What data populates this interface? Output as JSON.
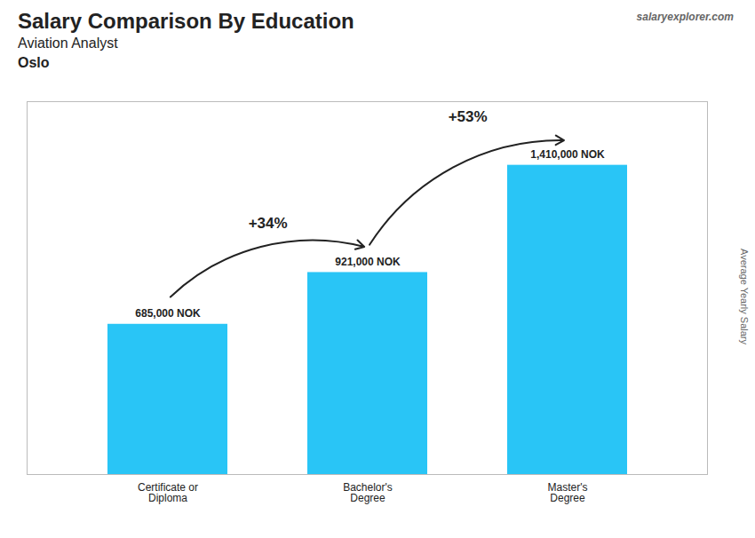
{
  "chart_data": {
    "type": "bar",
    "title": "Salary Comparison By Education",
    "subtitle": [
      "Aviation Analyst",
      "Oslo"
    ],
    "source": "salaryexplorer.com",
    "ylabel": "Average Yearly Salary",
    "categories": [
      "Certificate or\nDiploma",
      "Bachelor's\nDegree",
      "Master's\nDegree"
    ],
    "values": [
      685000,
      921000,
      1410000
    ],
    "value_labels": [
      "685,000 NOK",
      "921,000 NOK",
      "1,410,000 NOK"
    ],
    "data_labels": true,
    "annotations": [
      "+34%",
      "+53%"
    ],
    "color": "#29C5F6",
    "ylim": [
      0,
      1700000
    ],
    "yticks": [],
    "tick_labels": "x",
    "grid": false
  }
}
